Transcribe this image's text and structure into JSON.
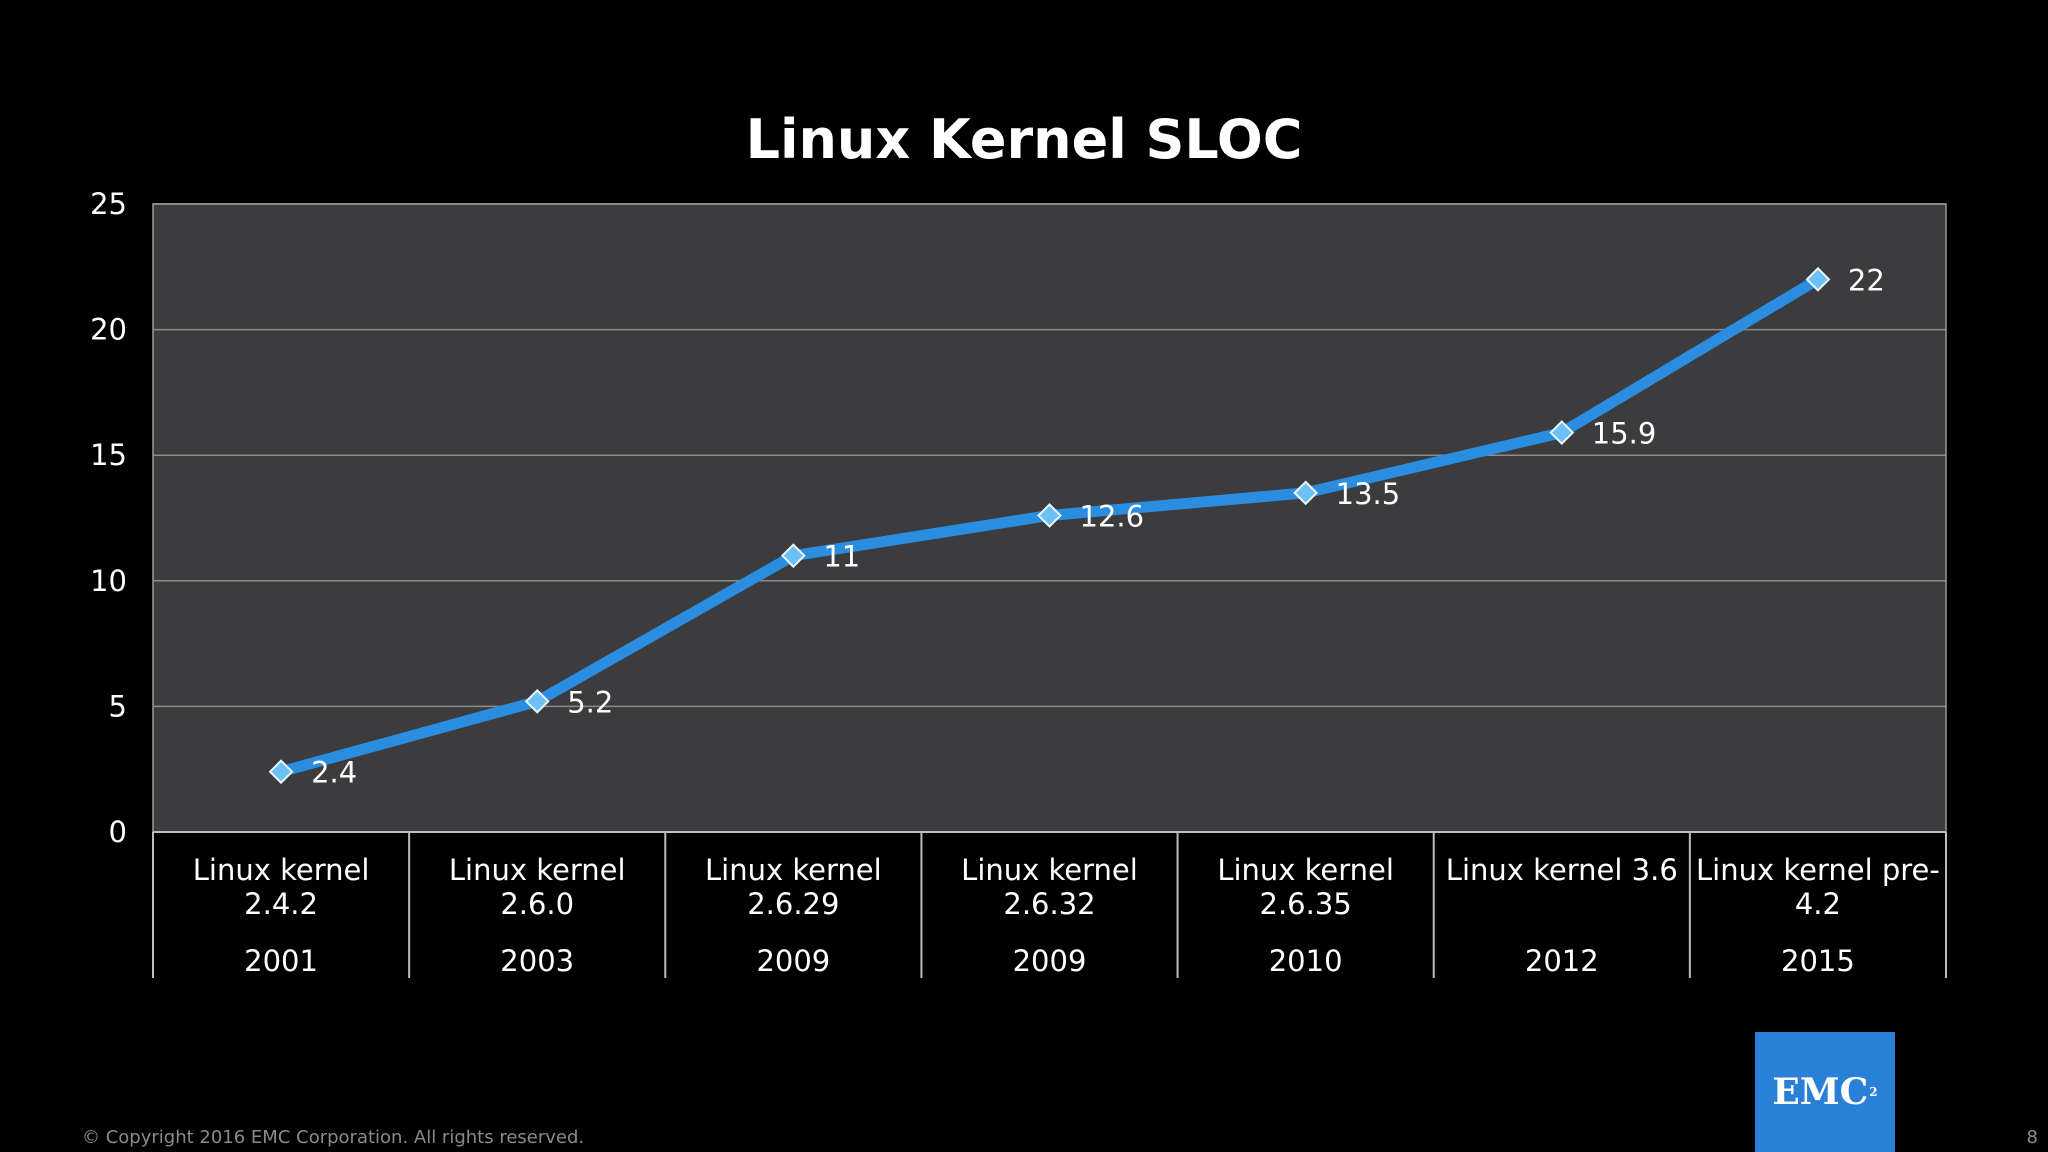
{
  "slide": {
    "footer": "© Copyright 2016 EMC Corporation. All rights reserved.",
    "page_number": "8",
    "logo_text": "EMC",
    "logo_sup": "2"
  },
  "colors": {
    "background": "#000000",
    "plot_area": "#3c3c3e",
    "gridline": "#8c8c8c",
    "line": "#2a8de0",
    "marker": "#6cc0f5",
    "logo": "#2a7fd6"
  },
  "chart_data": {
    "type": "line",
    "title": "Linux Kernel SLOC",
    "xlabel": "",
    "ylabel": "",
    "categories": [
      {
        "label": [
          "Linux kernel",
          "2.4.2"
        ],
        "year": "2001"
      },
      {
        "label": [
          "Linux kernel",
          "2.6.0"
        ],
        "year": "2003"
      },
      {
        "label": [
          "Linux kernel",
          "2.6.29"
        ],
        "year": "2009"
      },
      {
        "label": [
          "Linux kernel",
          "2.6.32"
        ],
        "year": "2009"
      },
      {
        "label": [
          "Linux kernel",
          "2.6.35"
        ],
        "year": "2010"
      },
      {
        "label": [
          "Linux kernel 3.6"
        ],
        "year": "2012"
      },
      {
        "label": [
          "Linux kernel pre-",
          "4.2"
        ],
        "year": "2015"
      }
    ],
    "series": [
      {
        "values": [
          2.4,
          5.2,
          11,
          12.6,
          13.5,
          15.9,
          22
        ],
        "data_labels": [
          "2.4",
          "5.2",
          "11",
          "12.6",
          "13.5",
          "15.9",
          "22"
        ]
      }
    ],
    "ylim": [
      0,
      25
    ],
    "yticks": [
      "0",
      "5",
      "10",
      "15",
      "20",
      "25"
    ],
    "grid": true,
    "legend": "none"
  }
}
